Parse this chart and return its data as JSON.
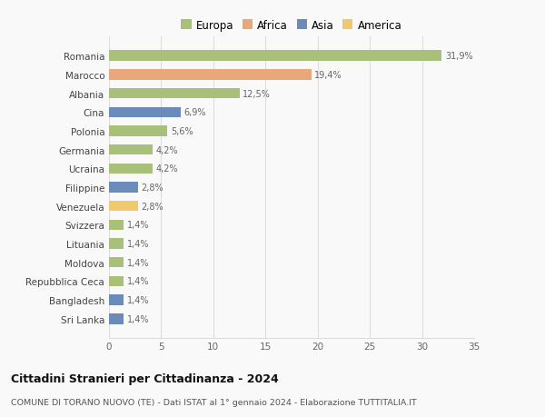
{
  "countries": [
    "Romania",
    "Marocco",
    "Albania",
    "Cina",
    "Polonia",
    "Germania",
    "Ucraina",
    "Filippine",
    "Venezuela",
    "Svizzera",
    "Lituania",
    "Moldova",
    "Repubblica Ceca",
    "Bangladesh",
    "Sri Lanka"
  ],
  "values": [
    31.9,
    19.4,
    12.5,
    6.9,
    5.6,
    4.2,
    4.2,
    2.8,
    2.8,
    1.4,
    1.4,
    1.4,
    1.4,
    1.4,
    1.4
  ],
  "labels": [
    "31,9%",
    "19,4%",
    "12,5%",
    "6,9%",
    "5,6%",
    "4,2%",
    "4,2%",
    "2,8%",
    "2,8%",
    "1,4%",
    "1,4%",
    "1,4%",
    "1,4%",
    "1,4%",
    "1,4%"
  ],
  "colors": [
    "#a8c07a",
    "#e8a87c",
    "#a8c07a",
    "#6b8cba",
    "#a8c07a",
    "#a8c07a",
    "#a8c07a",
    "#6b8cba",
    "#f0c96e",
    "#a8c07a",
    "#a8c07a",
    "#a8c07a",
    "#a8c07a",
    "#6b8cba",
    "#6b8cba"
  ],
  "legend": [
    {
      "label": "Europa",
      "color": "#a8c07a"
    },
    {
      "label": "Africa",
      "color": "#e8a87c"
    },
    {
      "label": "Asia",
      "color": "#6b8cba"
    },
    {
      "label": "America",
      "color": "#f0c96e"
    }
  ],
  "xlim": [
    0,
    35
  ],
  "xticks": [
    0,
    5,
    10,
    15,
    20,
    25,
    30,
    35
  ],
  "title": "Cittadini Stranieri per Cittadinanza - 2024",
  "subtitle": "COMUNE DI TORANO NUOVO (TE) - Dati ISTAT al 1° gennaio 2024 - Elaborazione TUTTITALIA.IT",
  "bg_color": "#f9f9f9",
  "grid_color": "#dddddd",
  "bar_height": 0.55
}
